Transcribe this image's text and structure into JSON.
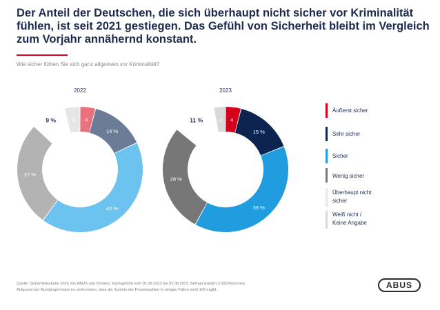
{
  "headline": "Der Anteil der Deutschen, die sich überhaupt nicht sicher vor Kriminalität fühlen, ist seit 2021 gestiegen. Das Gefühl von Sicherheit bleibt im Vergleich zum Vorjahr annähernd konstant.",
  "question": "Wie sicher fühlen Sie sich ganz allgemein vor Kriminalität?",
  "colors": {
    "aeusserst_sicher": "#d6001c",
    "sehr_sicher": "#0d2450",
    "sicher": "#219cde",
    "wenig_sicher": "#777777",
    "ueberhaupt_nicht_sicher": "#f2f2f2",
    "weiss_nicht": "#d9d9d9"
  },
  "chart_data": [
    {
      "type": "pie",
      "title": "2022",
      "style": "faded",
      "categories": [
        "Äußerst sicher",
        "Sehr sicher",
        "Sicher",
        "Wenig sicher",
        "Überhaupt nicht sicher",
        "Weiß nicht / Keine Angabe"
      ],
      "values": [
        4,
        14,
        42,
        27,
        9,
        4
      ],
      "labels": [
        "4",
        "14 %",
        "42 %",
        "27 %",
        "9 %",
        "4"
      ]
    },
    {
      "type": "pie",
      "title": "2023",
      "style": "full",
      "categories": [
        "Äußerst sicher",
        "Sehr sicher",
        "Sicher",
        "Wenig sicher",
        "Überhaupt nicht sicher",
        "Weiß nicht / Keine Angabe"
      ],
      "values": [
        4,
        15,
        39,
        28,
        11,
        3
      ],
      "labels": [
        "4",
        "15 %",
        "39 %",
        "28 %",
        "11 %",
        "3"
      ]
    }
  ],
  "legend": [
    {
      "label": "Äußerst sicher",
      "color": "#d6001c"
    },
    {
      "label": "Sehr sicher",
      "color": "#0d2450"
    },
    {
      "label": "Sicher",
      "color": "#219cde"
    },
    {
      "label": "Wenig sicher",
      "color": "#777777"
    },
    {
      "label": "Überhaupt nicht\nsicher",
      "color": "#f2f2f2"
    },
    {
      "label": "Weiß nicht /\nKeine Angabe",
      "color": "#d9d9d9"
    }
  ],
  "source": {
    "line1": "Quelle: Sicherheitsstudie 2023 von ABUS und YouGov, durchgeführt vom 01.08.2023 bis 03.08.2023. Befragt wurden 2.000 Personen.",
    "line2": "Aufgrund von Rundungen kann es vorkommen, dass die Summe der Prozentzahlen in einigen Fällen nicht 100 ergibt."
  },
  "logo": "ABUS"
}
